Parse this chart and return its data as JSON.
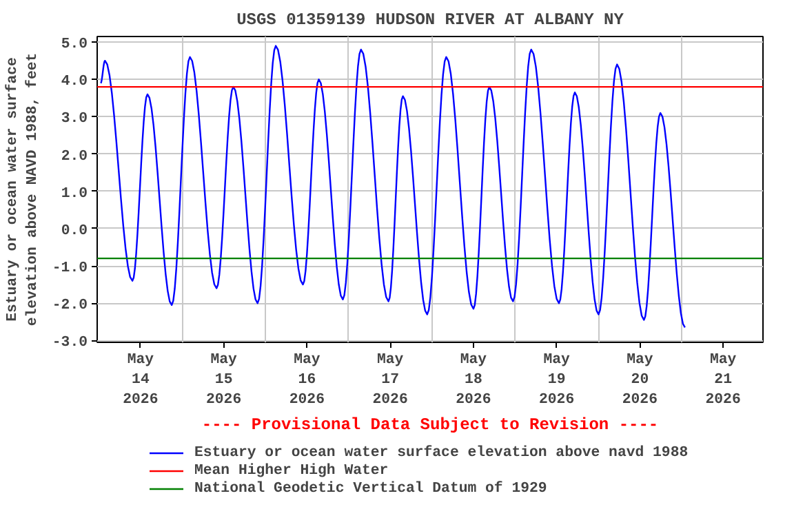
{
  "chart_data": {
    "type": "line",
    "title": "USGS 01359139 HUDSON RIVER AT ALBANY NY",
    "ylabel": "Estuary or ocean water surface\nelevation above NAVD 1988, feet",
    "annotations": [
      "---- Provisional Data Subject to Revision ----"
    ],
    "xlim": [
      "2026-05-13T11:30",
      "2026-05-21T11:30"
    ],
    "xticks": [
      {
        "value": "2026-05-14",
        "label": "May\n14\n2026"
      },
      {
        "value": "2026-05-15",
        "label": "May\n15\n2026"
      },
      {
        "value": "2026-05-16",
        "label": "May\n16\n2026"
      },
      {
        "value": "2026-05-17",
        "label": "May\n17\n2026"
      },
      {
        "value": "2026-05-18",
        "label": "May\n18\n2026"
      },
      {
        "value": "2026-05-19",
        "label": "May\n19\n2026"
      },
      {
        "value": "2026-05-20",
        "label": "May\n20\n2026"
      },
      {
        "value": "2026-05-21",
        "label": "May\n21\n2026"
      },
      {
        "value": "2026-05-14T12:00",
        "label": null
      },
      {
        "value": "2026-05-15T12:00",
        "label": null
      },
      {
        "value": "2026-05-16T12:00",
        "label": null
      },
      {
        "value": "2026-05-17T12:00",
        "label": null
      },
      {
        "value": "2026-05-18T12:00",
        "label": null
      },
      {
        "value": "2026-05-19T12:00",
        "label": null
      },
      {
        "value": "2026-05-20T12:00",
        "label": null
      }
    ],
    "ylim": [
      -3.05,
      5.15
    ],
    "yticks": [
      {
        "value": -3,
        "label": "-3.0"
      },
      {
        "value": -2,
        "label": "-2.0"
      },
      {
        "value": -1,
        "label": "-1.0"
      },
      {
        "value": 0,
        "label": "0.0"
      },
      {
        "value": 1,
        "label": "1.0"
      },
      {
        "value": 2,
        "label": "2.0"
      },
      {
        "value": 3,
        "label": "3.0"
      },
      {
        "value": 4,
        "label": "4.0"
      },
      {
        "value": 5,
        "label": "5.0"
      }
    ],
    "grid": true,
    "legend": "bottom",
    "series": [
      {
        "name": "Estuary or ocean water surface elevation above navd 1988",
        "color": "#0000ff",
        "x": [
          "2026-05-13T12:30",
          "2026-05-13T13:45",
          "2026-05-13T21:40",
          "2026-05-14T02:00",
          "2026-05-14T09:00",
          "2026-05-14T14:15",
          "2026-05-14T21:55",
          "2026-05-15T02:45",
          "2026-05-15T09:45",
          "2026-05-15T15:00",
          "2026-05-15T22:50",
          "2026-05-16T03:25",
          "2026-05-16T10:20",
          "2026-05-16T15:35",
          "2026-05-16T23:30",
          "2026-05-17T03:40",
          "2026-05-17T10:40",
          "2026-05-17T16:10",
          "2026-05-18T00:00",
          "2026-05-18T04:35",
          "2026-05-18T11:25",
          "2026-05-18T16:40",
          "2026-05-19T00:40",
          "2026-05-19T05:15",
          "2026-05-19T12:05",
          "2026-05-19T17:25",
          "2026-05-20T01:10",
          "2026-05-20T05:55",
          "2026-05-20T13:00"
        ],
        "values": [
          3.9,
          4.5,
          -1.4,
          3.6,
          -2.05,
          4.6,
          -1.6,
          3.8,
          -2.0,
          4.9,
          -1.5,
          4.0,
          -1.9,
          4.8,
          -1.95,
          3.55,
          -2.3,
          4.6,
          -2.15,
          3.8,
          -1.95,
          4.8,
          -2.0,
          3.65,
          -2.3,
          4.4,
          -2.45,
          3.1,
          -2.65
        ]
      }
    ],
    "ref_lines": [
      {
        "axis": "y",
        "value": 3.8,
        "label": "Mean Higher High Water",
        "color": "#ff0000"
      },
      {
        "axis": "y",
        "value": -0.8,
        "label": "National Geodetic Vertical Datum of 1929",
        "color": "#008000"
      }
    ]
  }
}
